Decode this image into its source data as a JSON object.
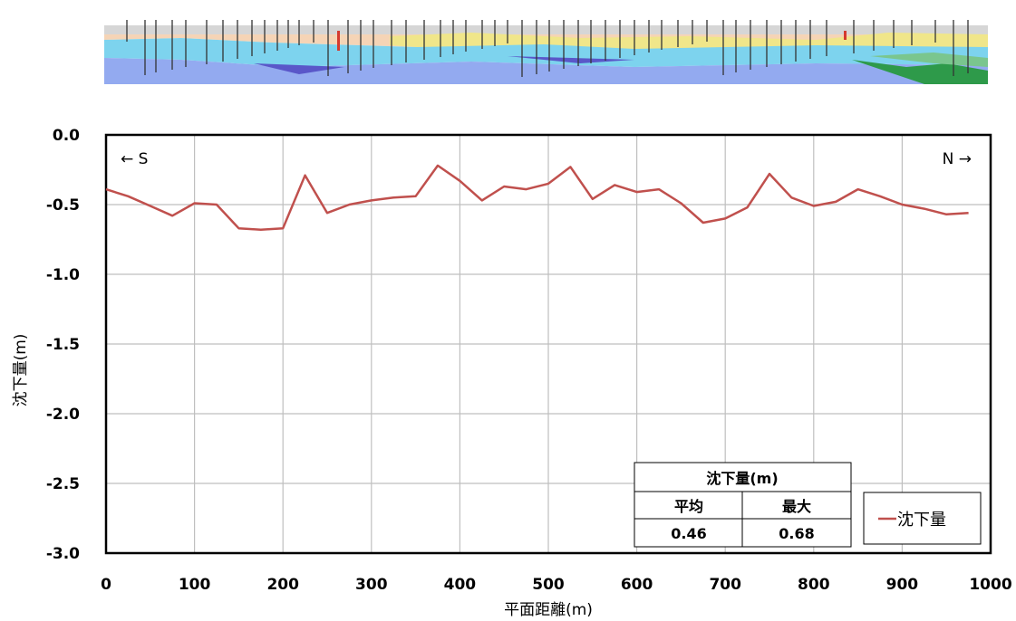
{
  "chart_data": {
    "type": "line",
    "xlabel": "平面距離(m)",
    "ylabel": "沈下量(m)",
    "xlim": [
      0,
      1000
    ],
    "ylim": [
      -3.0,
      0.0
    ],
    "x_ticks": [
      "0",
      "100",
      "200",
      "300",
      "400",
      "500",
      "600",
      "700",
      "800",
      "900",
      "1000"
    ],
    "y_ticks": [
      "0.0",
      "-0.5",
      "-1.0",
      "-1.5",
      "-2.0",
      "-2.5",
      "-3.0"
    ],
    "grid": true,
    "direction_left": "← S",
    "direction_right": "N →",
    "legend": {
      "position": "bottom-right",
      "entries": [
        "沈下量"
      ]
    },
    "series": [
      {
        "name": "沈下量",
        "color": "#c0504d",
        "x": [
          0,
          25,
          50,
          75,
          100,
          125,
          150,
          175,
          200,
          225,
          250,
          275,
          300,
          325,
          350,
          375,
          400,
          425,
          450,
          475,
          500,
          525,
          550,
          575,
          600,
          625,
          650,
          675,
          700,
          725,
          750,
          775,
          800,
          825,
          850,
          875,
          900,
          925,
          950,
          975
        ],
        "y": [
          -0.39,
          -0.44,
          -0.51,
          -0.58,
          -0.49,
          -0.5,
          -0.67,
          -0.68,
          -0.67,
          -0.29,
          -0.56,
          -0.5,
          -0.47,
          -0.45,
          -0.44,
          -0.22,
          -0.33,
          -0.47,
          -0.37,
          -0.39,
          -0.35,
          -0.23,
          -0.46,
          -0.36,
          -0.41,
          -0.39,
          -0.49,
          -0.63,
          -0.6,
          -0.52,
          -0.28,
          -0.45,
          -0.51,
          -0.48,
          -0.39,
          -0.44,
          -0.5,
          -0.53,
          -0.57,
          -0.56
        ]
      }
    ],
    "stats_table": {
      "header": "沈下量(m)",
      "columns": [
        "平均",
        "最大"
      ],
      "values": [
        "0.46",
        "0.68"
      ]
    }
  },
  "profile_image": {
    "label": "geologic-cross-section"
  }
}
